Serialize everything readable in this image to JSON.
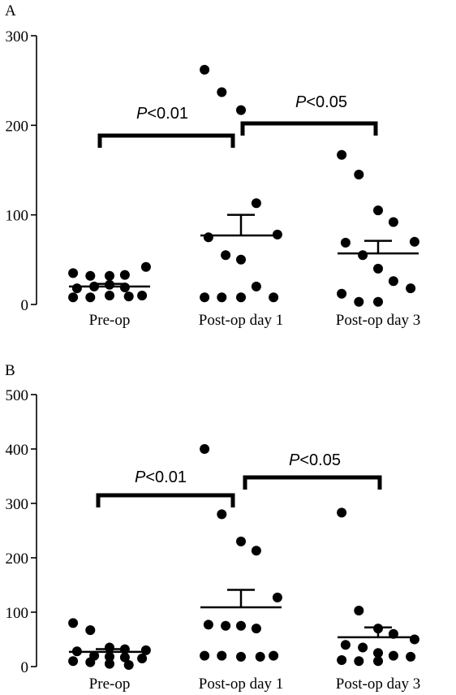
{
  "chart_data": [
    {
      "panel": "A",
      "type": "scatter",
      "categories": [
        "Pre-op",
        "Post-op day 1",
        "Post-op day 3"
      ],
      "yticks": [
        "0",
        "100",
        "200",
        "300"
      ],
      "ylim": [
        0,
        300
      ],
      "series": [
        {
          "category": "Pre-op",
          "mean": 20,
          "sem": 3,
          "points": [
            35,
            32,
            32,
            33,
            42,
            18,
            20,
            22,
            19,
            10,
            8,
            8,
            10,
            9
          ]
        },
        {
          "category": "Post-op day 1",
          "mean": 77,
          "sem": 23,
          "points": [
            262,
            237,
            217,
            113,
            78,
            75,
            55,
            50,
            20,
            8,
            8,
            8,
            8
          ]
        },
        {
          "category": "Post-op day 3",
          "mean": 57,
          "sem": 14,
          "points": [
            167,
            145,
            105,
            92,
            70,
            69,
            55,
            40,
            26,
            18,
            12,
            3,
            3
          ]
        }
      ],
      "comparisons": [
        {
          "from": 0,
          "to": 1,
          "label_italic": "P",
          "label_rest": "<0.01"
        },
        {
          "from": 1,
          "to": 2,
          "label_italic": "P",
          "label_rest": "<0.05"
        }
      ]
    },
    {
      "panel": "B",
      "type": "scatter",
      "categories": [
        "Pre-op",
        "Post-op day 1",
        "Post-op day 3"
      ],
      "yticks": [
        "0",
        "100",
        "200",
        "300",
        "400",
        "500"
      ],
      "ylim": [
        0,
        500
      ],
      "series": [
        {
          "category": "Pre-op",
          "mean": 27,
          "sem": 5,
          "points": [
            80,
            67,
            35,
            32,
            30,
            28,
            20,
            18,
            17,
            15,
            10,
            8,
            5,
            3
          ]
        },
        {
          "category": "Post-op day 1",
          "mean": 109,
          "sem": 32,
          "points": [
            400,
            280,
            230,
            213,
            127,
            77,
            75,
            75,
            70,
            20,
            20,
            20,
            18,
            18
          ]
        },
        {
          "category": "Post-op day 3",
          "mean": 54,
          "sem": 18,
          "points": [
            283,
            103,
            70,
            60,
            50,
            40,
            35,
            25,
            20,
            18,
            12,
            10,
            10
          ]
        }
      ],
      "comparisons": [
        {
          "from": 0,
          "to": 1,
          "label_italic": "P",
          "label_rest": "<0.01"
        },
        {
          "from": 1,
          "to": 2,
          "label_italic": "P",
          "label_rest": "<0.05"
        }
      ]
    }
  ]
}
